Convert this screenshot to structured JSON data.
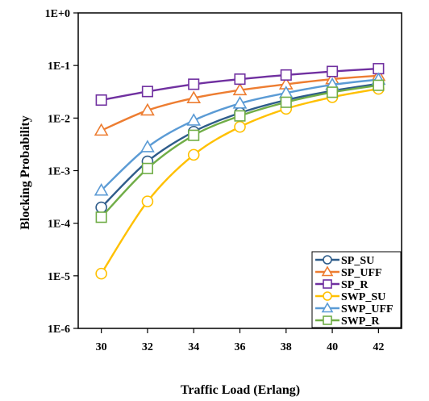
{
  "chart_data": {
    "type": "line",
    "xlabel": "Traffic Load (Erlang)",
    "ylabel": "Blocking Probability",
    "x": [
      30,
      32,
      34,
      36,
      38,
      40,
      42
    ],
    "xlim": [
      29,
      43
    ],
    "ylim": [
      1e-06,
      1
    ],
    "y_scale": "log",
    "x_ticks": [
      "30",
      "32",
      "34",
      "36",
      "38",
      "40",
      "42"
    ],
    "y_ticks": [
      "1E+0",
      "1E-1",
      "1E-2",
      "1E-3",
      "1E-4",
      "1E-5",
      "1E-6"
    ],
    "grid": false,
    "legend_position": "bottom-right",
    "series": [
      {
        "name": "SP_SU",
        "color": "#2E5C8A",
        "marker": "circle",
        "values": [
          0.0002,
          0.0015,
          0.0055,
          0.0125,
          0.022,
          0.033,
          0.045
        ]
      },
      {
        "name": "SP_UFF",
        "color": "#ED7D31",
        "marker": "triangle",
        "values": [
          0.0058,
          0.014,
          0.024,
          0.034,
          0.044,
          0.055,
          0.064
        ]
      },
      {
        "name": "SP_R",
        "color": "#7030A0",
        "marker": "square",
        "values": [
          0.022,
          0.032,
          0.044,
          0.055,
          0.066,
          0.077,
          0.087
        ]
      },
      {
        "name": "SWP_SU",
        "color": "#FFC000",
        "marker": "circle",
        "values": [
          1.1e-05,
          0.00026,
          0.002,
          0.0068,
          0.015,
          0.025,
          0.036
        ]
      },
      {
        "name": "SWP_UFF",
        "color": "#5B9BD5",
        "marker": "triangle",
        "values": [
          0.00042,
          0.0028,
          0.009,
          0.019,
          0.03,
          0.043,
          0.054
        ]
      },
      {
        "name": "SWP_R",
        "color": "#70AD47",
        "marker": "square",
        "values": [
          0.00013,
          0.0011,
          0.0047,
          0.011,
          0.02,
          0.031,
          0.042
        ]
      }
    ]
  }
}
